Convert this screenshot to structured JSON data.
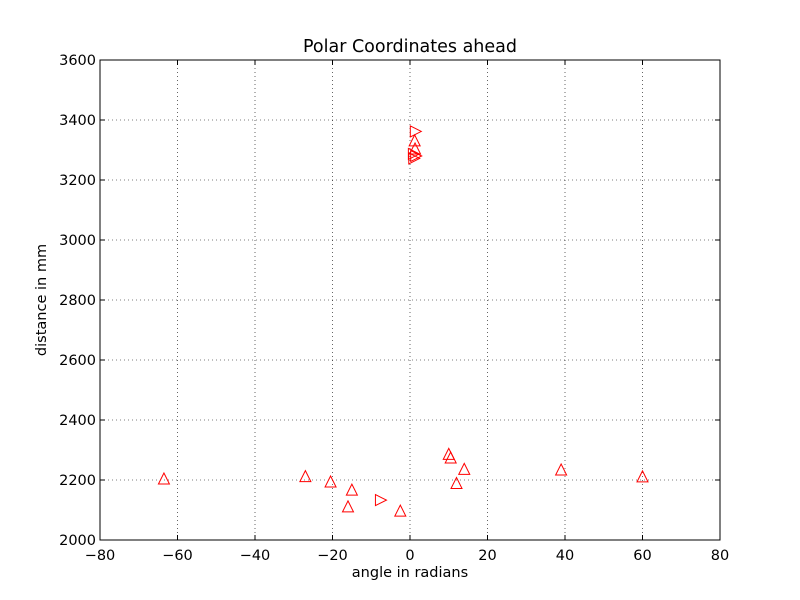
{
  "chart_data": {
    "type": "scatter",
    "title": "Polar Coordinates ahead",
    "xlabel": "angle in radians",
    "ylabel": "distance in mm",
    "xlim": [
      -80,
      80
    ],
    "ylim": [
      2000,
      3600
    ],
    "xticks": [
      -80,
      -60,
      -40,
      -20,
      0,
      20,
      40,
      60,
      80
    ],
    "yticks": [
      2000,
      2200,
      2400,
      2600,
      2800,
      3000,
      3200,
      3400,
      3600
    ],
    "grid": true,
    "series": [
      {
        "marker_color": "#ff0000",
        "points": [
          {
            "x": -63.5,
            "y": 2205,
            "marker": "triangle-up"
          },
          {
            "x": -27,
            "y": 2213,
            "marker": "triangle-up"
          },
          {
            "x": -20.5,
            "y": 2195,
            "marker": "triangle-up"
          },
          {
            "x": -15,
            "y": 2168,
            "marker": "triangle-up"
          },
          {
            "x": -16,
            "y": 2112,
            "marker": "triangle-up"
          },
          {
            "x": -7.5,
            "y": 2133,
            "marker": "triangle-right"
          },
          {
            "x": -2.5,
            "y": 2098,
            "marker": "triangle-up"
          },
          {
            "x": 10,
            "y": 2287,
            "marker": "triangle-up"
          },
          {
            "x": 10.5,
            "y": 2275,
            "marker": "triangle-up"
          },
          {
            "x": 14,
            "y": 2237,
            "marker": "triangle-up"
          },
          {
            "x": 12,
            "y": 2190,
            "marker": "triangle-up"
          },
          {
            "x": 39,
            "y": 2235,
            "marker": "triangle-up"
          },
          {
            "x": 60,
            "y": 2212,
            "marker": "triangle-up"
          },
          {
            "x": 1.5,
            "y": 3362,
            "marker": "triangle-right"
          },
          {
            "x": 1.2,
            "y": 3332,
            "marker": "triangle-up"
          },
          {
            "x": 1.3,
            "y": 3305,
            "marker": "triangle-up"
          },
          {
            "x": 1.0,
            "y": 3287,
            "marker": "triangle-right"
          },
          {
            "x": 1.6,
            "y": 3280,
            "marker": "triangle-right"
          },
          {
            "x": 1.1,
            "y": 3272,
            "marker": "triangle-right"
          }
        ]
      }
    ]
  }
}
